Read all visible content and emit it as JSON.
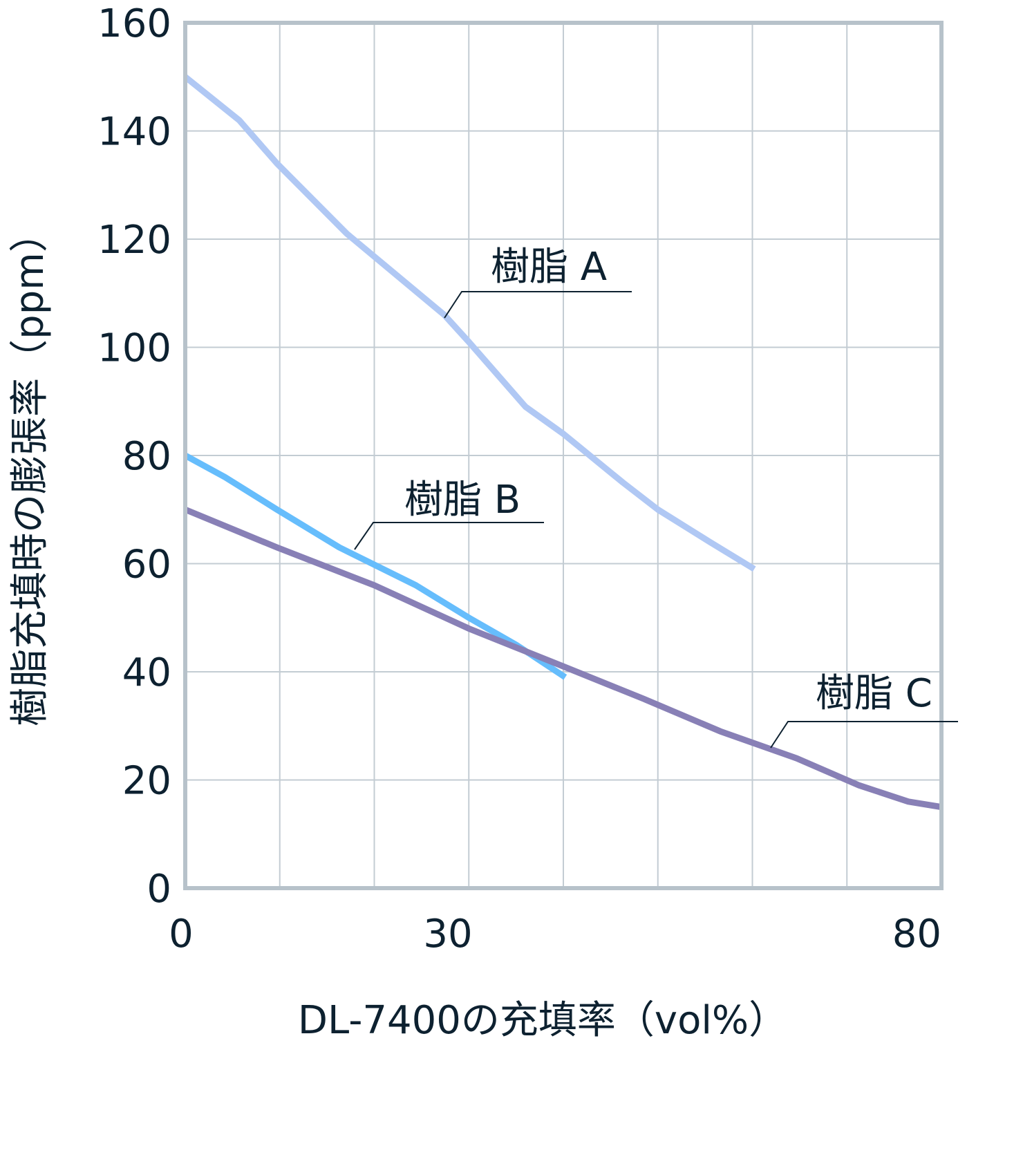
{
  "chart_data": {
    "type": "line",
    "title": "",
    "xlabel": "DL-7400の充填率（vol%）",
    "ylabel": "樹脂充填時の膨張率（ppm）",
    "ylim": [
      0,
      160
    ],
    "yticks": [
      0,
      20,
      40,
      60,
      80,
      100,
      120,
      140,
      160
    ],
    "xticks": [
      {
        "label": "0",
        "grid_index": 0
      },
      {
        "label": "30",
        "grid_index": 3
      },
      {
        "label": "80",
        "grid_index": 8
      }
    ],
    "x_grid_count": 9,
    "x_note": "x-axis has 8 equal grid intervals; only 0, 30 and 80 are labeled. Series x values are given as grid-position (0–8).",
    "grid": true,
    "legend": "inline labels with leader lines",
    "series": [
      {
        "name": "樹脂 A",
        "color": "#b0c8f4",
        "x": [
          0,
          0.57,
          0.97,
          1.71,
          2.74,
          3.0,
          3.6,
          4.0,
          4.63,
          5.0,
          5.55,
          6.02
        ],
        "values": [
          150,
          142,
          134,
          121,
          106,
          101,
          89,
          84,
          75,
          70,
          64,
          59
        ]
      },
      {
        "name": "樹脂 B",
        "color": "#66bdfc",
        "x": [
          0,
          0.42,
          0.97,
          1.63,
          2.44,
          3.0,
          3.5,
          4.02
        ],
        "values": [
          80,
          76,
          70,
          63,
          56,
          50,
          45,
          39
        ]
      },
      {
        "name": "樹脂 C",
        "color": "#8880b6",
        "x": [
          0,
          0.97,
          2.0,
          3.0,
          4.0,
          4.85,
          5.66,
          6.47,
          7.13,
          7.65,
          8.0
        ],
        "values": [
          70,
          63,
          56,
          48,
          41,
          35,
          29,
          24,
          19,
          16,
          15
        ]
      }
    ],
    "labels": {
      "a": "樹脂 A",
      "b": "樹脂 B",
      "c": "樹脂 C"
    },
    "colors": {
      "axis": "#b7c2ca",
      "grid": "#c3ccd3",
      "text": "#0d2130"
    }
  }
}
